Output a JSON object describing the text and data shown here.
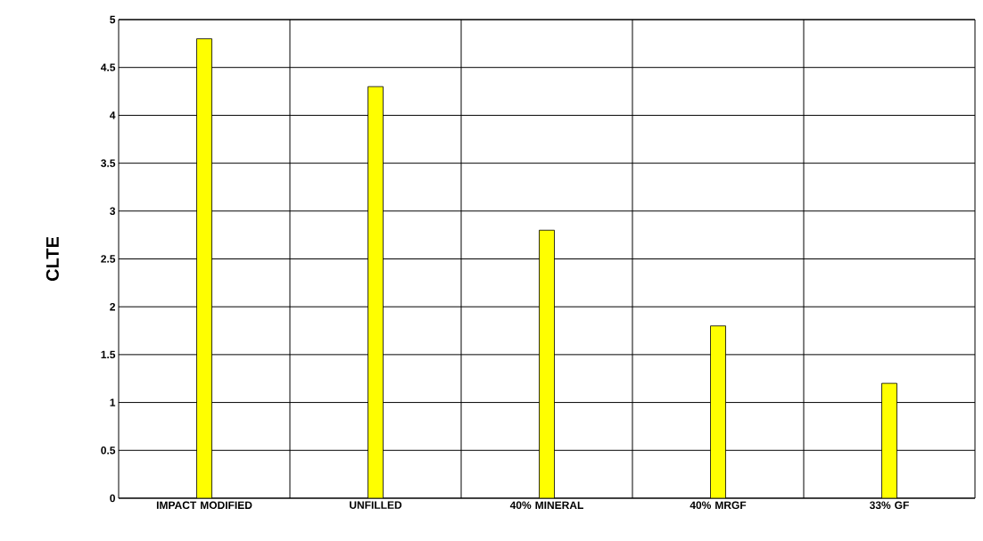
{
  "chart_data": {
    "type": "bar",
    "ylabel": "CLTE",
    "categories": [
      "IMPACT MODIFIED",
      "UNFILLED",
      "40% MINERAL",
      "40% MRGF",
      "33% GF"
    ],
    "values": [
      4.8,
      4.3,
      2.8,
      1.8,
      1.2
    ],
    "color": "#ffff00",
    "ylim": [
      0,
      5
    ],
    "yticks": [
      0,
      0.5,
      1,
      1.5,
      2,
      2.5,
      3,
      3.5,
      4,
      4.5,
      5
    ],
    "grid": true
  }
}
